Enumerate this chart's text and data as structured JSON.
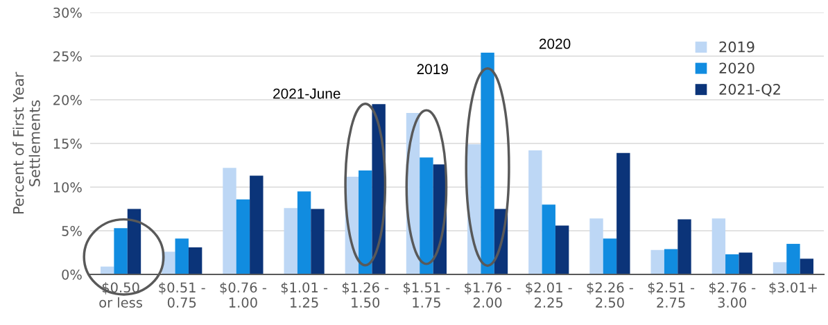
{
  "chart_data": {
    "type": "bar",
    "ylabel": "Percent of First Year\nSettlements",
    "categories": [
      "$0.50\nor less",
      "$0.51 -\n0.75",
      "$0.76 -\n1.00",
      "$1.01 -\n1.25",
      "$1.26 -\n1.50",
      "$1.51 -\n1.75",
      "$1.76 -\n2.00",
      "$2.01 -\n2.25",
      "$2.26 -\n2.50",
      "$2.51 -\n2.75",
      "$2.76 -\n3.00",
      "$3.01+"
    ],
    "series": [
      {
        "name": "2019",
        "color": "#bdd7f5",
        "values": [
          0.9,
          2.6,
          12.2,
          7.6,
          11.2,
          18.5,
          14.9,
          14.2,
          6.4,
          2.8,
          6.4,
          1.4
        ]
      },
      {
        "name": "2020",
        "color": "#118ce0",
        "values": [
          5.3,
          4.1,
          8.6,
          9.5,
          11.9,
          13.4,
          25.4,
          8.0,
          4.1,
          2.9,
          2.3,
          3.5
        ]
      },
      {
        "name": "2021-Q2",
        "color": "#0b3479",
        "values": [
          7.5,
          3.1,
          11.3,
          7.5,
          19.5,
          12.6,
          7.5,
          5.6,
          13.9,
          6.3,
          2.5,
          1.8
        ]
      }
    ],
    "ylim": [
      0,
      30
    ],
    "yticks": [
      {
        "value": 0,
        "label": "0%"
      },
      {
        "value": 5,
        "label": "5%"
      },
      {
        "value": 10,
        "label": "10%"
      },
      {
        "value": 15,
        "label": "15%"
      },
      {
        "value": 20,
        "label": "20%"
      },
      {
        "value": 25,
        "label": "25%"
      },
      {
        "value": 30,
        "label": "30%"
      }
    ],
    "grid": "y",
    "legend": "top right",
    "annotations": [
      "2021-June",
      "2019",
      "2020"
    ]
  }
}
